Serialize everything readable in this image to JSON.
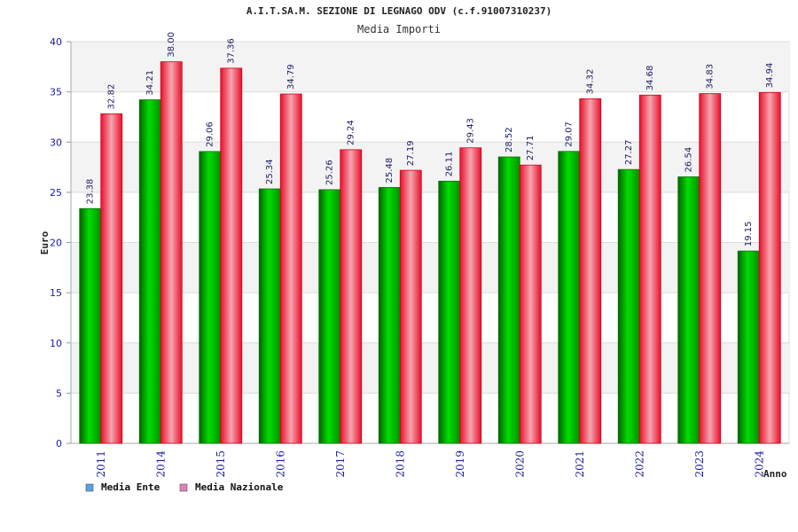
{
  "chart_data": {
    "type": "bar",
    "title": "A.I.T.SA.M. SEZIONE DI LEGNAGO ODV (c.f.91007310237)",
    "subtitle": "Media Importi",
    "xlabel": "Anno",
    "ylabel": "Euro",
    "ylim": [
      0,
      40
    ],
    "yticks": [
      0,
      5,
      10,
      15,
      20,
      25,
      30,
      35,
      40
    ],
    "grid": true,
    "legend_position": "bottom-left",
    "categories": [
      "2011",
      "2014",
      "2015",
      "2016",
      "2017",
      "2018",
      "2019",
      "2020",
      "2021",
      "2022",
      "2023",
      "2024"
    ],
    "series": [
      {
        "name": "Media Ente",
        "color": "#00b000",
        "legend_color": "#5aa0e6",
        "values": [
          23.38,
          34.21,
          29.06,
          25.34,
          25.26,
          25.48,
          26.11,
          28.52,
          29.07,
          27.27,
          26.54,
          19.15
        ],
        "labels": [
          "23.38",
          "34.21",
          "29.06",
          "25.34",
          "25.26",
          "25.48",
          "26.11",
          "28.52",
          "29.07",
          "27.27",
          "26.54",
          "19.15"
        ]
      },
      {
        "name": "Media Nazionale",
        "color": "#e8102a",
        "legend_color": "#e080b8",
        "values": [
          32.82,
          38.0,
          37.36,
          34.79,
          29.24,
          27.19,
          29.43,
          27.71,
          34.32,
          34.68,
          34.83,
          34.94
        ],
        "labels": [
          "32.82",
          "38.00",
          "37.36",
          "34.79",
          "29.24",
          "27.19",
          "29.43",
          "27.71",
          "34.32",
          "34.68",
          "34.83",
          "34.94"
        ]
      }
    ]
  }
}
